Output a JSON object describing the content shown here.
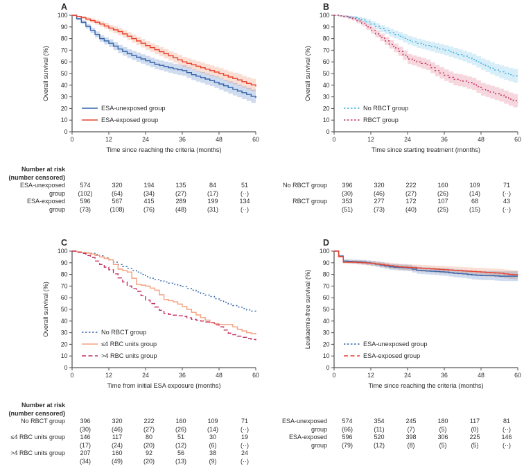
{
  "figure": {
    "background": "#ffffff",
    "text_color": "#2b2b2b",
    "axis_color": "#58595b",
    "risk_header_line1": "Number at risk",
    "risk_header_line2": "(number censored)"
  },
  "chart_data": [
    {
      "type": "line",
      "panel_label": "A",
      "ylabel": "Overall survival (%)",
      "xlabel": "Time since reaching the criteria (months)",
      "xlim": [
        0,
        60
      ],
      "ylim": [
        0,
        100
      ],
      "xticks": [
        0,
        12,
        24,
        36,
        48,
        60
      ],
      "yticks": [
        0,
        10,
        20,
        30,
        40,
        50,
        60,
        70,
        80,
        90,
        100
      ],
      "grid": false,
      "legend_position": "lower-left",
      "x": [
        0,
        3,
        6,
        9,
        12,
        15,
        18,
        21,
        24,
        27,
        30,
        33,
        36,
        39,
        42,
        45,
        48,
        51,
        54,
        57,
        60
      ],
      "series": [
        {
          "name": "ESA-unexposed group",
          "color": "#3465ab",
          "band_color": "#cfdbee",
          "dash": null,
          "legend_dash": null,
          "y": [
            100,
            94,
            87,
            80,
            76,
            71,
            67,
            64,
            61,
            58,
            56,
            54,
            52.5,
            49,
            46.5,
            44,
            41,
            38,
            35,
            32,
            29
          ],
          "band_hw": [
            0.8,
            1.6,
            2.3,
            2.9,
            3.3,
            3.6,
            3.8,
            4.0,
            4.1,
            4.2,
            4.3,
            4.4,
            4.5,
            4.6,
            4.7,
            4.8,
            5.0,
            5.2,
            5.4,
            5.6,
            5.8
          ]
        },
        {
          "name": "ESA-exposed group",
          "color": "#e8432f",
          "band_color": "#fadfd5",
          "dash": null,
          "legend_dash": null,
          "y": [
            100,
            98,
            95.5,
            92.5,
            89,
            86,
            82,
            78,
            74,
            70.5,
            67,
            63.5,
            60,
            57.5,
            55,
            52.5,
            50,
            47,
            44.5,
            41.5,
            39
          ],
          "band_hw": [
            0.5,
            1.2,
            1.8,
            2.4,
            2.8,
            3.1,
            3.4,
            3.6,
            3.8,
            3.9,
            4.0,
            4.1,
            4.2,
            4.3,
            4.4,
            4.5,
            4.6,
            4.8,
            5.0,
            5.2,
            5.4
          ]
        }
      ],
      "risk_table": {
        "show_header": true,
        "rows": [
          {
            "label_lines": [
              "ESA-unexposed",
              "group"
            ],
            "counts": [
              "574",
              "320",
              "194",
              "135",
              "84",
              "51"
            ],
            "censored": [
              "(102)",
              "(64)",
              "(34)",
              "(27)",
              "(17)",
              "(··)"
            ]
          },
          {
            "label_lines": [
              "ESA-exposed",
              "group"
            ],
            "counts": [
              "596",
              "567",
              "415",
              "289",
              "199",
              "134"
            ],
            "censored": [
              "(73)",
              "(108)",
              "(76)",
              "(48)",
              "(31)",
              "(··)"
            ]
          }
        ]
      }
    },
    {
      "type": "line",
      "panel_label": "B",
      "ylabel": "Overall survival (%)",
      "xlabel": "Time since starting treatment (months)",
      "xlim": [
        0,
        60
      ],
      "ylim": [
        0,
        100
      ],
      "xticks": [
        0,
        12,
        24,
        36,
        48,
        60
      ],
      "yticks": [
        0,
        10,
        20,
        30,
        40,
        50,
        60,
        70,
        80,
        90,
        100
      ],
      "grid": false,
      "legend_position": "lower-left",
      "x": [
        0,
        3,
        6,
        9,
        12,
        15,
        18,
        21,
        24,
        27,
        30,
        33,
        36,
        39,
        42,
        45,
        48,
        51,
        54,
        57,
        60
      ],
      "series": [
        {
          "name": "No RBCT group",
          "color": "#3fb0e0",
          "band_color": "#d8eef8",
          "dash": "2,3",
          "legend_dash": "2.5,2.5",
          "y": [
            100,
            99,
            98,
            96,
            92.5,
            88.5,
            85,
            82,
            78.5,
            76,
            74,
            72,
            70,
            67.5,
            65,
            62,
            58,
            54.5,
            51.5,
            49,
            47
          ],
          "band_hw": [
            0.4,
            0.9,
            1.4,
            2.0,
            2.5,
            2.9,
            3.2,
            3.5,
            3.7,
            3.9,
            4.0,
            4.2,
            4.3,
            4.5,
            4.6,
            4.8,
            5.0,
            5.2,
            5.5,
            5.8,
            6.0
          ]
        },
        {
          "name": "RBCT group",
          "color": "#c43060",
          "band_color": "#f6d7dd",
          "dash": "2,3",
          "legend_dash": "2.5,2.5",
          "y": [
            100,
            99,
            97,
            93,
            87,
            81,
            75,
            69,
            62.5,
            60,
            57.5,
            52.5,
            48.5,
            45,
            43.5,
            41,
            36.5,
            34,
            31.5,
            28,
            25.5
          ],
          "band_hw": [
            0.4,
            1.0,
            1.6,
            2.2,
            2.8,
            3.2,
            3.6,
            3.9,
            4.2,
            4.4,
            4.6,
            4.8,
            5.0,
            5.1,
            5.2,
            5.3,
            5.4,
            5.5,
            5.6,
            5.7,
            5.8
          ]
        }
      ],
      "risk_table": {
        "show_header": false,
        "rows": [
          {
            "label_lines": [
              "No RBCT group",
              ""
            ],
            "counts": [
              "396",
              "320",
              "222",
              "160",
              "109",
              "71"
            ],
            "censored": [
              "(30)",
              "(46)",
              "(27)",
              "(26)",
              "(14)",
              "(··)"
            ]
          },
          {
            "label_lines": [
              "RBCT group",
              ""
            ],
            "counts": [
              "353",
              "277",
              "172",
              "107",
              "68",
              "43"
            ],
            "censored": [
              "(51)",
              "(73)",
              "(40)",
              "(25)",
              "(15)",
              "(··)"
            ]
          }
        ]
      }
    },
    {
      "type": "line",
      "panel_label": "C",
      "ylabel": "Overall survival (%)",
      "xlabel": "Time from initial ESA exposure (months)",
      "xlim": [
        0,
        60
      ],
      "ylim": [
        0,
        100
      ],
      "xticks": [
        0,
        12,
        24,
        36,
        48,
        60
      ],
      "yticks": [
        0,
        10,
        20,
        30,
        40,
        50,
        60,
        70,
        80,
        90,
        100
      ],
      "grid": false,
      "legend_position": "lower-left",
      "x": [
        0,
        3,
        6,
        9,
        12,
        15,
        18,
        21,
        24,
        27,
        30,
        33,
        36,
        39,
        42,
        45,
        48,
        51,
        54,
        57,
        60
      ],
      "series": [
        {
          "name": "No RBCT group",
          "color": "#3465ab",
          "band_color": null,
          "dash": "2,3",
          "legend_dash": "2.5,2.5",
          "y": [
            100,
            99,
            98,
            96,
            92.5,
            88.5,
            85,
            82,
            78,
            75.5,
            73.5,
            71.5,
            69.5,
            66.5,
            63.5,
            61,
            57.5,
            54.5,
            52,
            49.5,
            47.5
          ],
          "band_hw": null
        },
        {
          "name": "≤4 RBC units group",
          "color": "#f5a07e",
          "band_color": null,
          "dash": null,
          "legend_dash": null,
          "y": [
            100,
            99,
            97.5,
            95,
            92.5,
            84.5,
            82,
            71.5,
            70,
            66.5,
            58.5,
            56.5,
            52.5,
            47.5,
            43,
            38.5,
            37,
            37,
            33,
            30,
            28.5
          ],
          "band_hw": null
        },
        {
          "name": ">4 RBC units group",
          "color": "#c43060",
          "band_color": null,
          "dash": "6,3.5",
          "legend_dash": "6,3.5",
          "y": [
            100,
            98,
            94.5,
            88.5,
            84,
            77,
            70,
            65.5,
            58,
            52,
            46.5,
            45,
            44,
            41.5,
            40,
            38.5,
            35,
            29.5,
            27,
            25,
            23.5
          ],
          "band_hw": null
        }
      ],
      "risk_table": {
        "show_header": true,
        "rows": [
          {
            "label_lines": [
              "No RBCT group",
              ""
            ],
            "counts": [
              "396",
              "320",
              "222",
              "160",
              "109",
              "71"
            ],
            "censored": [
              "(30)",
              "(46)",
              "(27)",
              "(26)",
              "(14)",
              "(··)"
            ]
          },
          {
            "label_lines": [
              "≤4 RBC units group",
              ""
            ],
            "counts": [
              "146",
              "117",
              "80",
              "51",
              "30",
              "19"
            ],
            "censored": [
              "(17)",
              "(24)",
              "(20)",
              "(12)",
              "(6)",
              "(··)"
            ]
          },
          {
            "label_lines": [
              ">4 RBC units group",
              ""
            ],
            "counts": [
              "207",
              "160",
              "92",
              "56",
              "38",
              "24"
            ],
            "censored": [
              "(34)",
              "(49)",
              "(20)",
              "(13)",
              "(9)",
              "(··)"
            ]
          }
        ]
      }
    },
    {
      "type": "line",
      "panel_label": "D",
      "ylabel": "Leukaemia-free survival (%)",
      "xlabel": "Time since reaching the criteria (months)",
      "xlim": [
        0,
        60
      ],
      "ylim": [
        0,
        100
      ],
      "xticks": [
        0,
        12,
        24,
        36,
        48,
        60
      ],
      "yticks": [
        0,
        10,
        20,
        30,
        40,
        50,
        60,
        70,
        80,
        90,
        100
      ],
      "grid": false,
      "legend_position": "lower-left",
      "x": [
        0,
        3,
        6,
        9,
        12,
        15,
        18,
        21,
        24,
        27,
        30,
        33,
        36,
        39,
        42,
        45,
        48,
        51,
        54,
        57,
        60
      ],
      "series": [
        {
          "name": "ESA-unexposed group",
          "color": "#3465ab",
          "band_color": "#cfdbee",
          "dash": null,
          "legend_dash": "2.5,2.5",
          "y": [
            100,
            91.5,
            91,
            90.5,
            89.5,
            88,
            86.5,
            86,
            85.5,
            83.5,
            83,
            82.5,
            82,
            81,
            80.5,
            79.5,
            79,
            79,
            78.5,
            78.5,
            78.5
          ],
          "band_hw": [
            0.3,
            1.5,
            1.7,
            1.9,
            2.1,
            2.3,
            2.5,
            2.6,
            2.7,
            2.9,
            3.0,
            3.1,
            3.2,
            3.4,
            3.5,
            3.7,
            3.9,
            4.0,
            4.1,
            4.2,
            4.3
          ]
        },
        {
          "name": "ESA-exposed group",
          "color": "#e8432f",
          "band_color": "#fadfd5",
          "dash": null,
          "legend_dash": "6,3.5",
          "y": [
            100,
            90.5,
            90.5,
            90,
            89.5,
            88.5,
            87.5,
            86.5,
            86,
            85.5,
            85,
            84.5,
            84,
            83.5,
            83,
            82.5,
            82,
            81.5,
            81,
            80,
            79.5
          ],
          "band_hw": [
            0.3,
            1.4,
            1.6,
            1.8,
            2.0,
            2.2,
            2.4,
            2.5,
            2.6,
            2.8,
            2.9,
            3.0,
            3.1,
            3.2,
            3.3,
            3.4,
            3.5,
            3.6,
            3.7,
            3.8,
            3.9
          ]
        }
      ],
      "risk_table": {
        "show_header": false,
        "rows": [
          {
            "label_lines": [
              "ESA-unexposed",
              "group"
            ],
            "counts": [
              "574",
              "354",
              "245",
              "180",
              "117",
              "81"
            ],
            "censored": [
              "(66)",
              "(11)",
              "(7)",
              "(5)",
              "(0)",
              "(··)"
            ]
          },
          {
            "label_lines": [
              "ESA-exposed",
              "group"
            ],
            "counts": [
              "596",
              "520",
              "398",
              "306",
              "225",
              "146"
            ],
            "censored": [
              "(79)",
              "(12)",
              "(8)",
              "(5)",
              "(5)",
              "(··)"
            ]
          }
        ]
      }
    }
  ]
}
